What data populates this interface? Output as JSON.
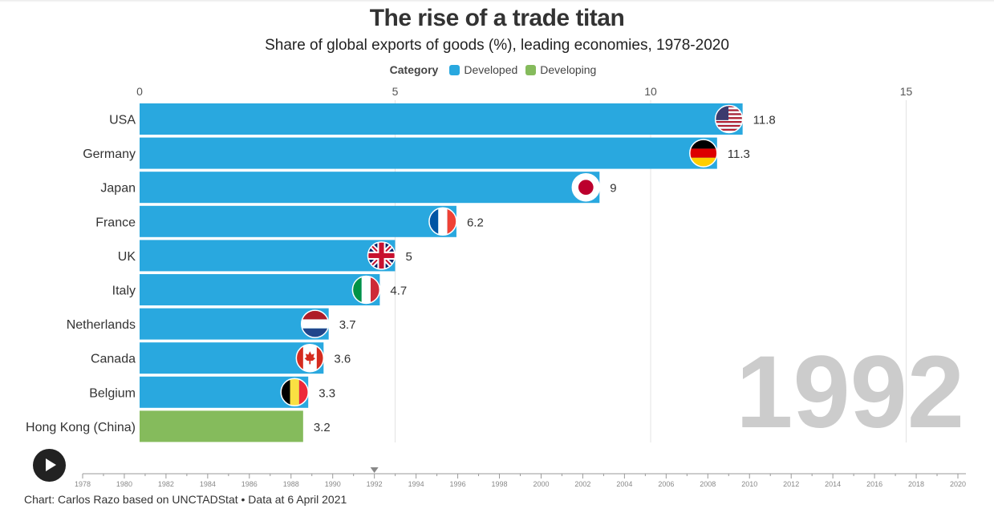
{
  "title": "The rise of a trade titan",
  "subtitle": "Share of global exports of goods (%), leading economies, 1978-2020",
  "legend": {
    "title": "Category",
    "items": [
      {
        "label": "Developed",
        "color": "#29a8df"
      },
      {
        "label": "Developing",
        "color": "#85bb5c"
      }
    ]
  },
  "footer": "Chart: Carlos Razo based on UNCTADStat • Data at 6 April 2021",
  "play_button": {
    "icon": "play-icon"
  },
  "chart_data": {
    "type": "bar",
    "orientation": "horizontal",
    "year": "1992",
    "categories": [
      "USA",
      "Germany",
      "Japan",
      "France",
      "UK",
      "Italy",
      "Netherlands",
      "Canada",
      "Belgium",
      "Hong Kong (China)"
    ],
    "values": [
      11.8,
      11.3,
      9,
      6.2,
      5,
      4.7,
      3.7,
      3.6,
      3.3,
      3.2
    ],
    "value_labels": [
      "11.8",
      "11.3",
      "9",
      "6.2",
      "5",
      "4.7",
      "3.7",
      "3.6",
      "3.3",
      "3.2"
    ],
    "group": [
      "Developed",
      "Developed",
      "Developed",
      "Developed",
      "Developed",
      "Developed",
      "Developed",
      "Developed",
      "Developed",
      "Developing"
    ],
    "flags": [
      "usa-flag-icon",
      "germany-flag-icon",
      "japan-flag-icon",
      "france-flag-icon",
      "uk-flag-icon",
      "italy-flag-icon",
      "netherlands-flag-icon",
      "canada-flag-icon",
      "belgium-flag-icon",
      ""
    ],
    "xlim": [
      0,
      16
    ],
    "x_ticks": [
      "0",
      "5",
      "10",
      "15"
    ],
    "x_tick_values": [
      0,
      5,
      10,
      15
    ],
    "grid": true,
    "xaxis_position": "top",
    "colors": {
      "Developed": "#29a8df",
      "Developing": "#85bb5c"
    }
  },
  "timeline": {
    "years": [
      "1978",
      "1980",
      "1982",
      "1984",
      "1986",
      "1988",
      "1990",
      "1992",
      "1994",
      "1996",
      "1998",
      "2000",
      "2002",
      "2004",
      "2006",
      "2008",
      "2010",
      "2012",
      "2014",
      "2016",
      "2018",
      "2020"
    ],
    "current": "1992",
    "start": 1978,
    "end": 2020
  }
}
